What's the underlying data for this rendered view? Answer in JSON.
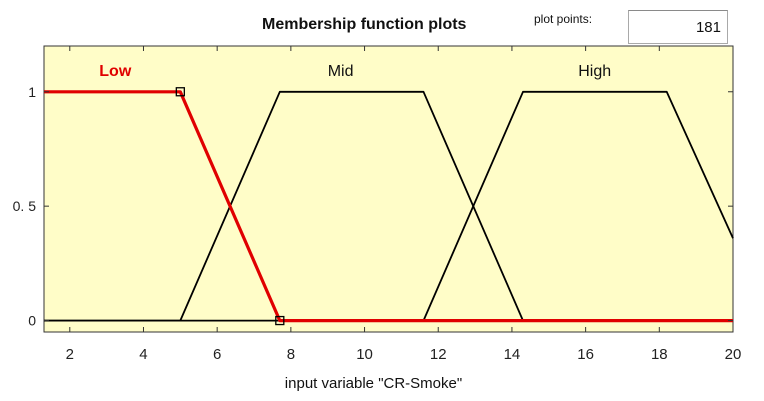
{
  "header": {
    "title": "Membership function plots",
    "plot_points_label": "plot points:",
    "plot_points_value": "181"
  },
  "colors": {
    "plot_background": "#fffdc8",
    "selected_curve": "#e00000",
    "curve": "#000000"
  },
  "chart_data": {
    "type": "line",
    "title": "",
    "xlabel": "input variable \"CR-Smoke\"",
    "ylabel": "",
    "xlim": [
      1.3,
      20
    ],
    "ylim": [
      -0.05,
      1.2
    ],
    "xticks": [
      2,
      4,
      6,
      8,
      10,
      12,
      14,
      16,
      18,
      20
    ],
    "yticks": [
      {
        "value": 0,
        "label": "0"
      },
      {
        "value": 0.5,
        "label": "0. 5"
      },
      {
        "value": 1,
        "label": "1"
      }
    ],
    "grid": false,
    "series": [
      {
        "name": "Low",
        "selected": true,
        "x": [
          1.3,
          5.0,
          7.7,
          20
        ],
        "y": [
          1,
          1,
          0,
          0
        ]
      },
      {
        "name": "Mid",
        "selected": false,
        "x": [
          1.3,
          5.0,
          7.7,
          11.6,
          14.3,
          20
        ],
        "y": [
          0,
          0,
          1,
          1,
          0,
          0
        ]
      },
      {
        "name": "High",
        "selected": false,
        "x": [
          1.3,
          11.6,
          14.3,
          18.2,
          20
        ],
        "y": [
          0,
          0,
          1,
          1,
          0.36
        ]
      }
    ],
    "series_labels": [
      {
        "name": "Low",
        "x": 2.8
      },
      {
        "name": "Mid",
        "x": 9.0
      },
      {
        "name": "High",
        "x": 15.8
      }
    ],
    "selected_markers_x": [
      5.0,
      7.7
    ]
  }
}
